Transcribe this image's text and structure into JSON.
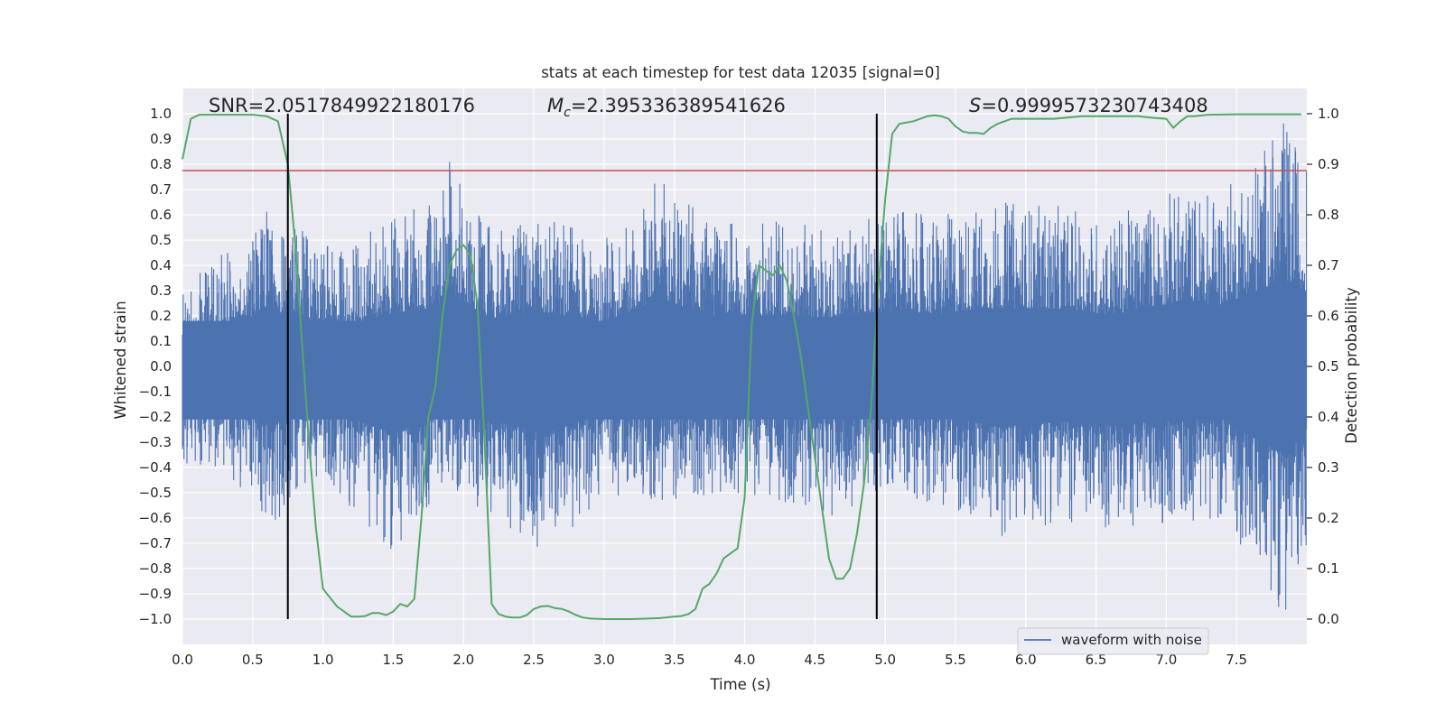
{
  "chart_data": {
    "type": "line",
    "title": "stats at each timestep for test data 12035 [signal=0]",
    "xlabel": "Time (s)",
    "ylabel": "Whitened strain",
    "y2label": "Detection probability",
    "xlim": [
      0.0,
      8.0
    ],
    "ylim": [
      -1.1,
      1.1
    ],
    "y2lim": [
      -0.05,
      1.05
    ],
    "x_ticks": [
      0.0,
      0.5,
      1.0,
      1.5,
      2.0,
      2.5,
      3.0,
      3.5,
      4.0,
      4.5,
      5.0,
      5.5,
      6.0,
      6.5,
      7.0,
      7.5
    ],
    "x_tick_labels": [
      "0.0",
      "0.5",
      "1.0",
      "1.5",
      "2.0",
      "2.5",
      "3.0",
      "3.5",
      "4.0",
      "4.5",
      "5.0",
      "5.5",
      "6.0",
      "6.5",
      "7.0",
      "7.5"
    ],
    "y_ticks": [
      1.0,
      0.9,
      0.8,
      0.7,
      0.6,
      0.5,
      0.4,
      0.3,
      0.2,
      0.1,
      0.0,
      -0.1,
      -0.2,
      -0.3,
      -0.4,
      -0.5,
      -0.6,
      -0.7,
      -0.8,
      -0.9,
      -1.0
    ],
    "y_tick_labels": [
      "1.0",
      "0.9",
      "0.8",
      "0.7",
      "0.6",
      "0.5",
      "0.4",
      "0.3",
      "0.2",
      "0.1",
      "0.0",
      "−0.1",
      "−0.2",
      "−0.3",
      "−0.4",
      "−0.5",
      "−0.6",
      "−0.7",
      "−0.8",
      "−0.9",
      "−1.0"
    ],
    "y2_ticks": [
      1.0,
      0.9,
      0.8,
      0.7,
      0.6,
      0.5,
      0.4,
      0.3,
      0.2,
      0.1,
      0.0
    ],
    "y2_tick_labels": [
      "1.0",
      "0.9",
      "0.8",
      "0.7",
      "0.6",
      "0.5",
      "0.4",
      "0.3",
      "0.2",
      "0.1",
      "0.0"
    ],
    "annotations": {
      "snr": "SNR=2.0517849922180176",
      "mc_symbol": "M",
      "mc_sub": "c",
      "mc_value": "=2.395336389541626",
      "s_symbol": "S",
      "s_value": "=0.9999573230743408"
    },
    "legend": {
      "label": "waveform with noise",
      "location": "lower right"
    },
    "series": [
      {
        "name": "waveform with noise",
        "axis": "left",
        "color": "#4c72b0",
        "envelope_points": [
          {
            "x": 0.0,
            "upper": 0.33,
            "lower": -0.38
          },
          {
            "x": 0.3,
            "upper": 0.45,
            "lower": -0.42
          },
          {
            "x": 0.6,
            "upper": 0.63,
            "lower": -0.66
          },
          {
            "x": 0.9,
            "upper": 0.52,
            "lower": -0.45
          },
          {
            "x": 1.2,
            "upper": 0.48,
            "lower": -0.58
          },
          {
            "x": 1.5,
            "upper": 0.6,
            "lower": -0.76
          },
          {
            "x": 1.8,
            "upper": 0.65,
            "lower": -0.52
          },
          {
            "x": 1.9,
            "upper": 0.82,
            "lower": -0.48
          },
          {
            "x": 2.2,
            "upper": 0.54,
            "lower": -0.6
          },
          {
            "x": 2.6,
            "upper": 0.6,
            "lower": -0.75
          },
          {
            "x": 3.0,
            "upper": 0.5,
            "lower": -0.5
          },
          {
            "x": 3.4,
            "upper": 0.75,
            "lower": -0.55
          },
          {
            "x": 3.8,
            "upper": 0.56,
            "lower": -0.5
          },
          {
            "x": 4.2,
            "upper": 0.58,
            "lower": -0.52
          },
          {
            "x": 4.6,
            "upper": 0.55,
            "lower": -0.6
          },
          {
            "x": 5.0,
            "upper": 0.62,
            "lower": -0.5
          },
          {
            "x": 5.4,
            "upper": 0.6,
            "lower": -0.55
          },
          {
            "x": 5.8,
            "upper": 0.66,
            "lower": -0.68
          },
          {
            "x": 6.2,
            "upper": 0.64,
            "lower": -0.62
          },
          {
            "x": 6.6,
            "upper": 0.58,
            "lower": -0.66
          },
          {
            "x": 7.0,
            "upper": 0.7,
            "lower": -0.62
          },
          {
            "x": 7.4,
            "upper": 0.7,
            "lower": -0.6
          },
          {
            "x": 7.85,
            "upper": 0.98,
            "lower": -1.0
          },
          {
            "x": 8.0,
            "upper": 0.8,
            "lower": -0.7
          }
        ]
      },
      {
        "name": "detection probability",
        "axis": "right",
        "color": "#55a868",
        "x": [
          0.0,
          0.06,
          0.12,
          0.25,
          0.5,
          0.6,
          0.68,
          0.75,
          0.8,
          0.85,
          0.9,
          0.95,
          1.0,
          1.1,
          1.2,
          1.25,
          1.3,
          1.35,
          1.4,
          1.45,
          1.5,
          1.55,
          1.6,
          1.65,
          1.7,
          1.75,
          1.8,
          1.85,
          1.9,
          1.95,
          2.0,
          2.05,
          2.1,
          2.15,
          2.2,
          2.25,
          2.3,
          2.35,
          2.4,
          2.45,
          2.5,
          2.55,
          2.6,
          2.65,
          2.7,
          2.75,
          2.8,
          2.85,
          2.9,
          3.0,
          3.2,
          3.4,
          3.5,
          3.55,
          3.6,
          3.65,
          3.7,
          3.75,
          3.8,
          3.85,
          3.9,
          3.95,
          4.0,
          4.05,
          4.1,
          4.15,
          4.2,
          4.25,
          4.3,
          4.35,
          4.4,
          4.45,
          4.5,
          4.55,
          4.6,
          4.65,
          4.7,
          4.75,
          4.8,
          4.85,
          4.9,
          4.95,
          5.0,
          5.05,
          5.1,
          5.2,
          5.3,
          5.35,
          5.4,
          5.45,
          5.5,
          5.55,
          5.6,
          5.65,
          5.7,
          5.75,
          5.8,
          5.9,
          6.0,
          6.2,
          6.4,
          6.6,
          6.8,
          6.9,
          7.0,
          7.05,
          7.1,
          7.15,
          7.2,
          7.3,
          7.5,
          7.7,
          7.96
        ],
        "values": [
          0.91,
          0.99,
          0.998,
          0.998,
          0.998,
          0.995,
          0.985,
          0.9,
          0.75,
          0.55,
          0.35,
          0.18,
          0.06,
          0.025,
          0.005,
          0.005,
          0.006,
          0.012,
          0.012,
          0.008,
          0.015,
          0.03,
          0.025,
          0.04,
          0.2,
          0.4,
          0.46,
          0.6,
          0.7,
          0.73,
          0.74,
          0.72,
          0.62,
          0.35,
          0.03,
          0.01,
          0.005,
          0.003,
          0.003,
          0.008,
          0.02,
          0.025,
          0.026,
          0.022,
          0.02,
          0.015,
          0.008,
          0.003,
          0.001,
          0.0,
          0.0,
          0.002,
          0.005,
          0.006,
          0.01,
          0.02,
          0.06,
          0.07,
          0.09,
          0.12,
          0.13,
          0.14,
          0.24,
          0.58,
          0.7,
          0.69,
          0.68,
          0.7,
          0.67,
          0.6,
          0.52,
          0.42,
          0.32,
          0.22,
          0.12,
          0.08,
          0.08,
          0.1,
          0.17,
          0.27,
          0.42,
          0.65,
          0.83,
          0.96,
          0.98,
          0.985,
          0.995,
          0.997,
          0.995,
          0.99,
          0.975,
          0.965,
          0.962,
          0.962,
          0.96,
          0.972,
          0.98,
          0.99,
          0.99,
          0.99,
          0.995,
          0.995,
          0.995,
          0.992,
          0.99,
          0.972,
          0.985,
          0.995,
          0.995,
          0.998,
          0.999,
          0.999,
          0.999
        ]
      }
    ],
    "threshold_line": {
      "axis": "left",
      "y": 0.775,
      "color": "#c44e52"
    },
    "vertical_lines": [
      {
        "x": 0.75,
        "color": "#000000"
      },
      {
        "x": 4.94,
        "color": "#000000"
      }
    ],
    "colors": {
      "plot_background": "#eaeaf2",
      "grid": "#ffffff",
      "waveform": "#4c72b0",
      "probability": "#55a868",
      "threshold": "#c44e52"
    }
  }
}
